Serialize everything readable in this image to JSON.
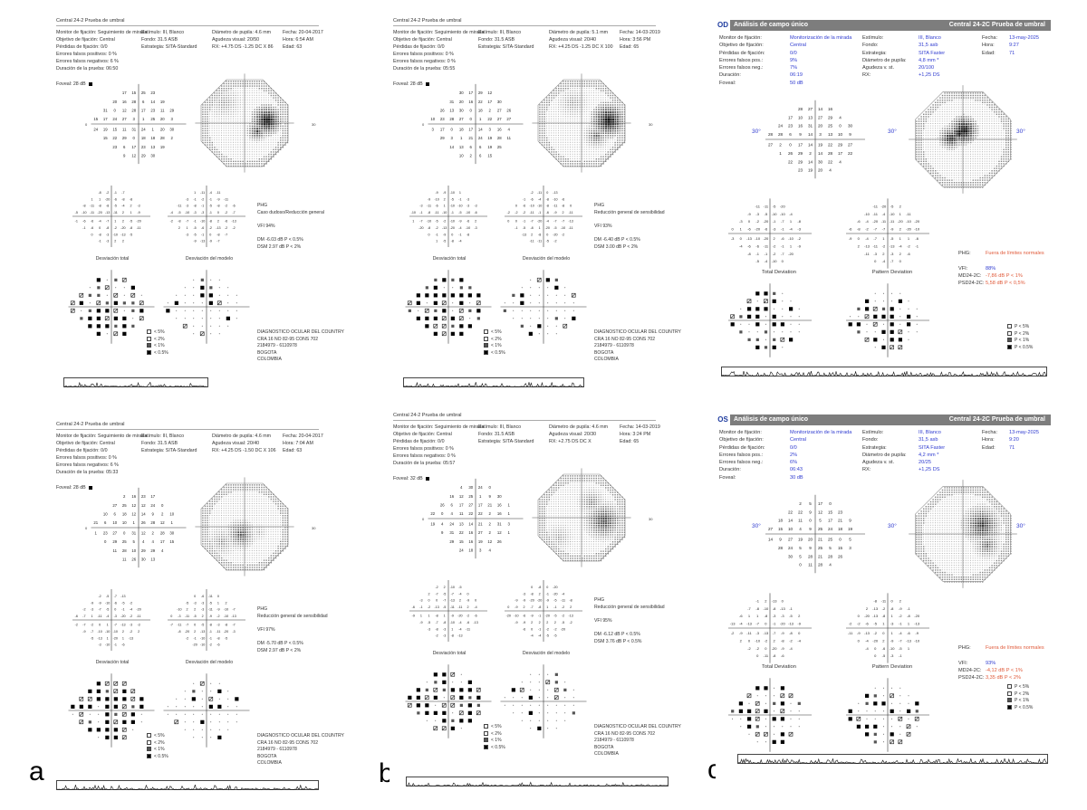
{
  "panel_labels": [
    "a",
    "b",
    "c"
  ],
  "reports_a": [
    {
      "title": "Central 24-2 Prueba de umbral",
      "col1": [
        "Monitor de fijación: Seguimiento de mirada",
        "Objetivo de fijación: Central",
        "Pérdidas de fijación: 0/0",
        "Errores falsos positivos:  0 %",
        "Errores falsos negativos:  6 %",
        "Duración de la prueba: 06:50"
      ],
      "col2": [
        "Estímulo: III, Blanco",
        "Fondo: 31.5 ASB",
        "Estrategia: SITA-Standard"
      ],
      "col3": [
        "Diámetro de pupila: 4.6 mm",
        "Agudeza visual: 20/50",
        "RX: +4.75 DS  -1.25 DC  X 86"
      ],
      "col4": [
        "Fecha: 20-04-2017",
        "Hora: 6:54 AM",
        "Edad: 63"
      ],
      "foveal": "Foveal: 28 dB",
      "vfi": "VFI   94%",
      "phg_title": "PHG",
      "phg_text": "Caso dudoso/Reducción general",
      "dm": "DM     -6.03 dB  P < 0.5%",
      "dsm": "DSM    2.97 dB  P < 2%",
      "cap_total": "Desviación total",
      "cap_model": "Desviación del modelo"
    },
    {
      "title": "Central 24-2 Prueba de umbral",
      "col1": [
        "Monitor de fijación: Seguimiento de mirada",
        "Objetivo de fijación: Central",
        "Pérdidas de fijación: 0/0",
        "Errores falsos positivos:  0 %",
        "Errores falsos negativos:  6 %",
        "Duración de la prueba: 05:33"
      ],
      "col2": [
        "Estímulo: III, Blanco",
        "Fondo: 31.5 ASB",
        "Estrategia: SITA-Standard"
      ],
      "col3": [
        "Diámetro de pupila: 4.6 mm",
        "Agudeza visual: 20/40",
        "RX: +4.25 DS  -1.50 DC  X 106"
      ],
      "col4": [
        "Fecha: 20-04-2017",
        "Hora: 7:04 AM",
        "Edad: 63"
      ],
      "foveal": "Foveal: 28 dB",
      "vfi": "VFI   97%",
      "phg_title": "PHG",
      "phg_text": "Reducción general de sensibilidad",
      "dm": "DM     -5.70 dB  P < 0.5%",
      "dsm": "DSM    2.97 dB  P < 2%",
      "cap_total": "Desviación total",
      "cap_model": "Desviación del modelo"
    }
  ],
  "reports_b": [
    {
      "title": "Central 24-2 Prueba de umbral",
      "col1": [
        "Monitor de fijación: Seguimiento de mirada",
        "Objetivo de fijación: Central",
        "Pérdidas de fijación: 0/0",
        "Errores falsos positivos:  0 %",
        "Errores falsos negativos:  0 %",
        "Duración de la prueba: 05:55"
      ],
      "col2": [
        "Estímulo: III, Blanco",
        "Fondo: 31.5 ASB",
        "Estrategia: SITA-Standard"
      ],
      "col3": [
        "Diámetro de pupila: 5.1 mm",
        "Agudeza visual: 20/40",
        "RX: +4.25 DS  -1.25 DC  X 100"
      ],
      "col4": [
        "Fecha: 14-03-2019",
        "Hora: 3:56 PM",
        "Edad: 65"
      ],
      "foveal": "Foveal: 28 dB",
      "vfi": "VFI   93%",
      "phg_title": "PHG",
      "phg_text": "Reducción general de sensibilidad",
      "dm": "DM     -6.40 dB  P < 0.5%",
      "dsm": "DSM    3.00 dB  P < 2%",
      "cap_total": "Desviación total",
      "cap_model": "Desviación del modelo"
    },
    {
      "title": "Central 24-2 Prueba de umbral",
      "col1": [
        "Monitor de fijación: Seguimiento de mirada",
        "Objetivo de fijación: Central",
        "Pérdidas de fijación: 0/0",
        "Errores falsos positivos:  0 %",
        "Errores falsos negativos:  0 %",
        "Duración de la prueba: 05:57"
      ],
      "col2": [
        "Estímulo: III, Blanco",
        "Fondo: 31.5 ASB",
        "Estrategia: SITA-Standard"
      ],
      "col3": [
        "Diámetro de pupila: 4.6 mm",
        "Agudeza visual: 20/30",
        "RX: +2.75 DS   DC  X"
      ],
      "col4": [
        "Fecha: 14-03-2019",
        "Hora: 3:24 PM",
        "Edad: 65"
      ],
      "foveal": "Foveal: 32 dB",
      "vfi": "VFI   95%",
      "phg_title": "PHG",
      "phg_text": "Reducción general de sensibilidad",
      "dm": "DM     -6.12 dB  P < 0.5%",
      "dsm": "DSM    3.76 dB  P < 0.5%",
      "cap_total": "Desviación total",
      "cap_model": "Desviación del modelo"
    }
  ],
  "clinic": [
    "DIAGNOSTICO OCULAR DEL COUNTRY",
    "CRA 16 NO 82-95 CONS 702",
    "2184979 - 6110978",
    "BOGOTA",
    "COLOMBIA"
  ],
  "legend_ab": [
    "< 5%",
    "< 2%",
    "< 1%",
    "< 0.5%"
  ],
  "reports_c": [
    {
      "eye": "OD",
      "head_left": "Análisis de campo único",
      "head_right": "Central 24-2C Prueba de umbral",
      "lab1": [
        "Monitor de fijación:",
        "Objetivo de fijación:",
        "Pérdidas de fijación:",
        "Errores falsos pos.:",
        "Errores falsos neg.:",
        "Duración:",
        "Foveal:"
      ],
      "val1": [
        "Monitorización de la mirada",
        "Central",
        "0/0",
        "9%",
        "7%",
        "06:19",
        "50 dB"
      ],
      "lab2": [
        "Estímulo:",
        "Fondo:",
        "Estrategia:",
        "Diámetro de pupila:",
        "Agudeza v. st.",
        "RX:"
      ],
      "val2": [
        "III, Blanco",
        "31,5 asb",
        "SITA Faster",
        "4,8 mm *",
        "20/100",
        "+1,25 DS"
      ],
      "lab3": [
        "Fecha:",
        "Hora:",
        "Edad:"
      ],
      "val3": [
        "13-may-2025",
        "9:27",
        "71"
      ],
      "ght_label": "PHG:",
      "ght_value": "Fuera de límites normales",
      "vfi_label": "VFI:",
      "vfi_value": "88%",
      "md_label": "MD24-2C:",
      "md_value": "-7,86 dB P < 1%",
      "psd_label": "PSD24-2C:",
      "psd_value": "5,58 dB P < 0,5%",
      "cap_total": "Total Deviation",
      "cap_pattern": "Pattern Deviation",
      "axis_left": "30°",
      "axis_mid": "30°",
      "axis_right": "30°"
    },
    {
      "eye": "OS",
      "head_left": "Análisis de campo único",
      "head_right": "Central 24-2C Prueba de umbral",
      "lab1": [
        "Monitor de fijación:",
        "Objetivo de fijación:",
        "Pérdidas de fijación:",
        "Errores falsos pos.:",
        "Errores falsos neg.:",
        "Duración:",
        "Foveal:"
      ],
      "val1": [
        "Monitorización de la mirada",
        "Central",
        "0/0",
        "2%",
        "6%",
        "06:43",
        "30 dB"
      ],
      "lab2": [
        "Estímulo:",
        "Fondo:",
        "Estrategia:",
        "Diámetro de pupila:",
        "Agudeza v. st.",
        "RX:"
      ],
      "val2": [
        "III, Blanco",
        "31,5 asb",
        "SITA Faster",
        "4,2 mm *",
        "20/25",
        "+1,25 DS"
      ],
      "lab3": [
        "Fecha:",
        "Hora:",
        "Edad:"
      ],
      "val3": [
        "13-may-2025",
        "9:20",
        "71"
      ],
      "ght_label": "PHG:",
      "ght_value": "Fuera de límites normales",
      "vfi_label": "VFI:",
      "vfi_value": "93%",
      "md_label": "MD24-2C:",
      "md_value": "-4,12 dB P < 1%",
      "psd_label": "PSD24-2C:",
      "psd_value": "3,35 dB P < 2%",
      "cap_total": "Total Deviation",
      "cap_pattern": "Pattern Deviation",
      "axis_left": "30°",
      "axis_mid": "30°",
      "axis_right": "30°"
    }
  ],
  "legend_c": [
    "P < 5%",
    "P < 2%",
    "P < 1%",
    "P < 0.5%"
  ],
  "field_numbers": [
    "26",
    "27",
    "28",
    "25",
    "29",
    "24",
    "30",
    "23",
    "31",
    "22",
    "18",
    "21",
    "19",
    "20",
    "17",
    "16",
    "15",
    "14",
    "13",
    "12",
    "11",
    "10",
    "9",
    "0",
    "4",
    "5",
    "6",
    "2",
    "3",
    "1"
  ],
  "dev_numbers": [
    "-1",
    "-2",
    "-3",
    "-4",
    "-5",
    "-6",
    "-7",
    "-8",
    "-9",
    "0",
    "1",
    "2",
    "-10",
    "-11",
    "-13",
    "-20"
  ],
  "axis_zero": "0",
  "axis_30": "30"
}
